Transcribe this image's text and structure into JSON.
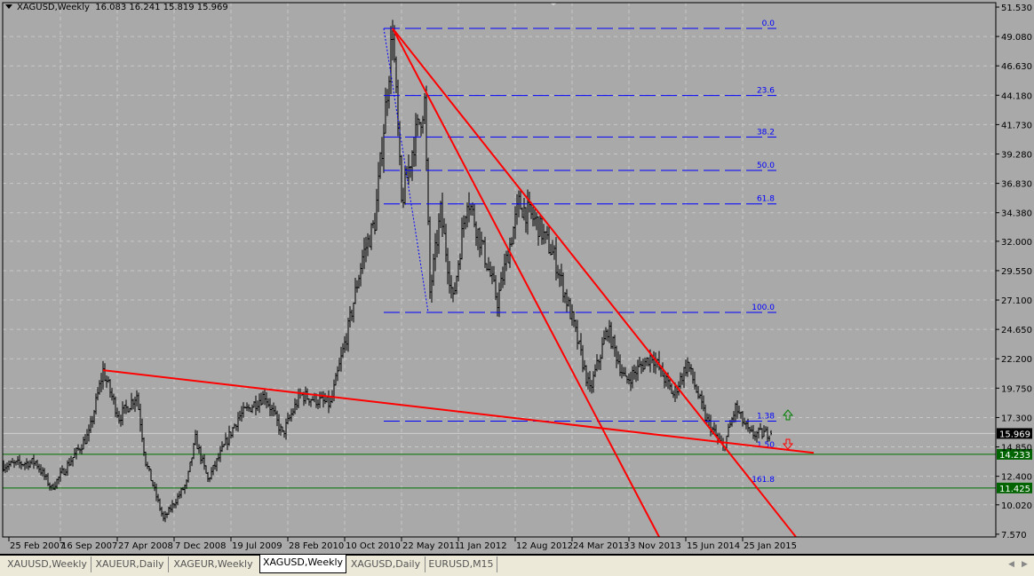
{
  "window": {
    "symbol_label": "XAGUSD,Weekly",
    "ohlc_readout": "16.083 16.241 15.819 15.969"
  },
  "tabs": [
    {
      "label": "XAUUSD,Weekly",
      "active": false
    },
    {
      "label": "XAUEUR,Daily",
      "active": false
    },
    {
      "label": "XAGEUR,Weekly",
      "active": false
    },
    {
      "label": "XAGUSD,Weekly",
      "active": true
    },
    {
      "label": "XAGUSD,Daily",
      "active": false
    },
    {
      "label": "EURUSD,M15",
      "active": false
    }
  ],
  "icons": {
    "scroll_left": "scroll-left-icon",
    "scroll_right": "scroll-right-icon",
    "buy_arrow": "up-arrow-icon",
    "sell_arrow": "down-arrow-icon"
  },
  "colors": {
    "background": "#a9a9a9",
    "bars": "#000000",
    "trendline": "#ff0000",
    "fibo": "#0000ff",
    "hline": "#007000",
    "price_label": "#000000"
  },
  "chart_data": {
    "type": "ohlc",
    "symbol": "XAGUSD",
    "timeframe": "Weekly",
    "last_bar": {
      "open": 16.083,
      "high": 16.241,
      "low": 15.819,
      "close": 15.969
    },
    "current_price": "15.969",
    "ylim": [
      7.57,
      51.53
    ],
    "y_ticks": [
      "51.530",
      "49.080",
      "46.630",
      "44.180",
      "41.730",
      "39.280",
      "36.830",
      "34.380",
      "32.000",
      "29.550",
      "27.100",
      "24.650",
      "22.200",
      "19.750",
      "17.300",
      "14.850",
      "12.400",
      "10.020",
      "7.570"
    ],
    "x_ticks": [
      {
        "date": "2007-02-25",
        "label": "25 Feb 2007"
      },
      {
        "date": "2007-09-16",
        "label": "16 Sep 2007"
      },
      {
        "date": "2008-04-27",
        "label": "27 Apr 2008"
      },
      {
        "date": "2008-12-07",
        "label": "7 Dec 2008"
      },
      {
        "date": "2009-07-19",
        "label": "19 Jul 2009"
      },
      {
        "date": "2010-02-28",
        "label": "28 Feb 2010"
      },
      {
        "date": "2010-10-10",
        "label": "10 Oct 2010"
      },
      {
        "date": "2011-05-22",
        "label": "22 May 2011"
      },
      {
        "date": "2012-01-01",
        "label": "1 Jan 2012"
      },
      {
        "date": "2012-08-12",
        "label": "12 Aug 2012"
      },
      {
        "date": "2013-03-24",
        "label": "24 Mar 2013"
      },
      {
        "date": "2013-11-03",
        "label": "3 Nov 2013"
      },
      {
        "date": "2014-06-15",
        "label": "15 Jun 2014"
      },
      {
        "date": "2015-01-25",
        "label": "25 Jan 2015"
      }
    ],
    "grid": true,
    "approx_closes": [
      [
        "2007-02-04",
        13.3
      ],
      [
        "2007-06-10",
        13.6
      ],
      [
        "2007-08-12",
        11.4
      ],
      [
        "2008-01-06",
        15.9
      ],
      [
        "2008-03-02",
        21.2
      ],
      [
        "2008-05-04",
        17.3
      ],
      [
        "2008-07-13",
        19.2
      ],
      [
        "2008-08-17",
        13.6
      ],
      [
        "2008-10-26",
        8.8
      ],
      [
        "2009-01-25",
        11.8
      ],
      [
        "2009-03-01",
        15.5
      ],
      [
        "2009-04-19",
        12.1
      ],
      [
        "2009-08-16",
        17.3
      ],
      [
        "2009-11-29",
        19.2
      ],
      [
        "2010-02-07",
        15.9
      ],
      [
        "2010-04-18",
        19.2
      ],
      [
        "2010-08-15",
        18.4
      ],
      [
        "2010-10-24",
        24.7
      ],
      [
        "2010-12-19",
        30.7
      ],
      [
        "2011-02-06",
        33.6
      ],
      [
        "2011-03-27",
        44.7
      ],
      [
        "2011-04-17",
        49.8
      ],
      [
        "2011-05-22",
        35.1
      ],
      [
        "2011-07-10",
        40.3
      ],
      [
        "2011-08-21",
        43.6
      ],
      [
        "2011-09-11",
        27.7
      ],
      [
        "2011-10-23",
        34.4
      ],
      [
        "2011-12-11",
        27.0
      ],
      [
        "2012-02-05",
        35.8
      ],
      [
        "2012-04-15",
        30.7
      ],
      [
        "2012-06-03",
        27.0
      ],
      [
        "2012-08-26",
        35.1
      ],
      [
        "2012-11-04",
        33.6
      ],
      [
        "2013-01-13",
        30.7
      ],
      [
        "2013-03-24",
        25.5
      ],
      [
        "2013-06-02",
        19.5
      ],
      [
        "2013-08-11",
        24.7
      ],
      [
        "2013-10-20",
        20.3
      ],
      [
        "2014-02-02",
        22.5
      ],
      [
        "2014-04-27",
        19.2
      ],
      [
        "2014-06-22",
        21.8
      ],
      [
        "2014-08-31",
        17.3
      ],
      [
        "2014-11-09",
        14.7
      ],
      [
        "2014-12-28",
        18.1
      ],
      [
        "2015-02-22",
        15.9
      ],
      [
        "2015-05-17",
        16.0
      ]
    ],
    "trendlines": [
      {
        "from": [
          "2008-03-02",
          21.25
        ],
        "to": [
          "2015-11-01",
          14.35
        ],
        "ray": true
      },
      {
        "from": [
          "2011-04-17",
          49.75
        ],
        "to": [
          "2015-08-23",
          7.34
        ]
      },
      {
        "from": [
          "2011-04-17",
          49.75
        ],
        "to": [
          "2014-03-02",
          7.34
        ]
      }
    ],
    "fibonacci": {
      "from": [
        "2011-04-17",
        49.75
      ],
      "to": [
        "2011-09-04",
        26.07
      ],
      "end_date": "2015-06-07",
      "levels": [
        {
          "label": "0.0",
          "price": 49.75,
          "line": true
        },
        {
          "label": "23.6",
          "price": 44.16,
          "line": true
        },
        {
          "label": "38.2",
          "price": 40.7,
          "line": true
        },
        {
          "label": "50.0",
          "price": 37.91,
          "line": true
        },
        {
          "label": "61.8",
          "price": 35.12,
          "line": true
        },
        {
          "label": "100.0",
          "price": 26.07,
          "line": true
        },
        {
          "label": "1.38",
          "price": 17.0,
          "line": true
        },
        {
          "label": "1.50",
          "price": 14.6,
          "line": false
        },
        {
          "label": "161.8",
          "price": 11.7,
          "line": false
        }
      ]
    },
    "horizontal_lines": [
      {
        "price": 14.233,
        "label": "14.233"
      },
      {
        "price": 11.425,
        "label": "11.425"
      }
    ]
  }
}
